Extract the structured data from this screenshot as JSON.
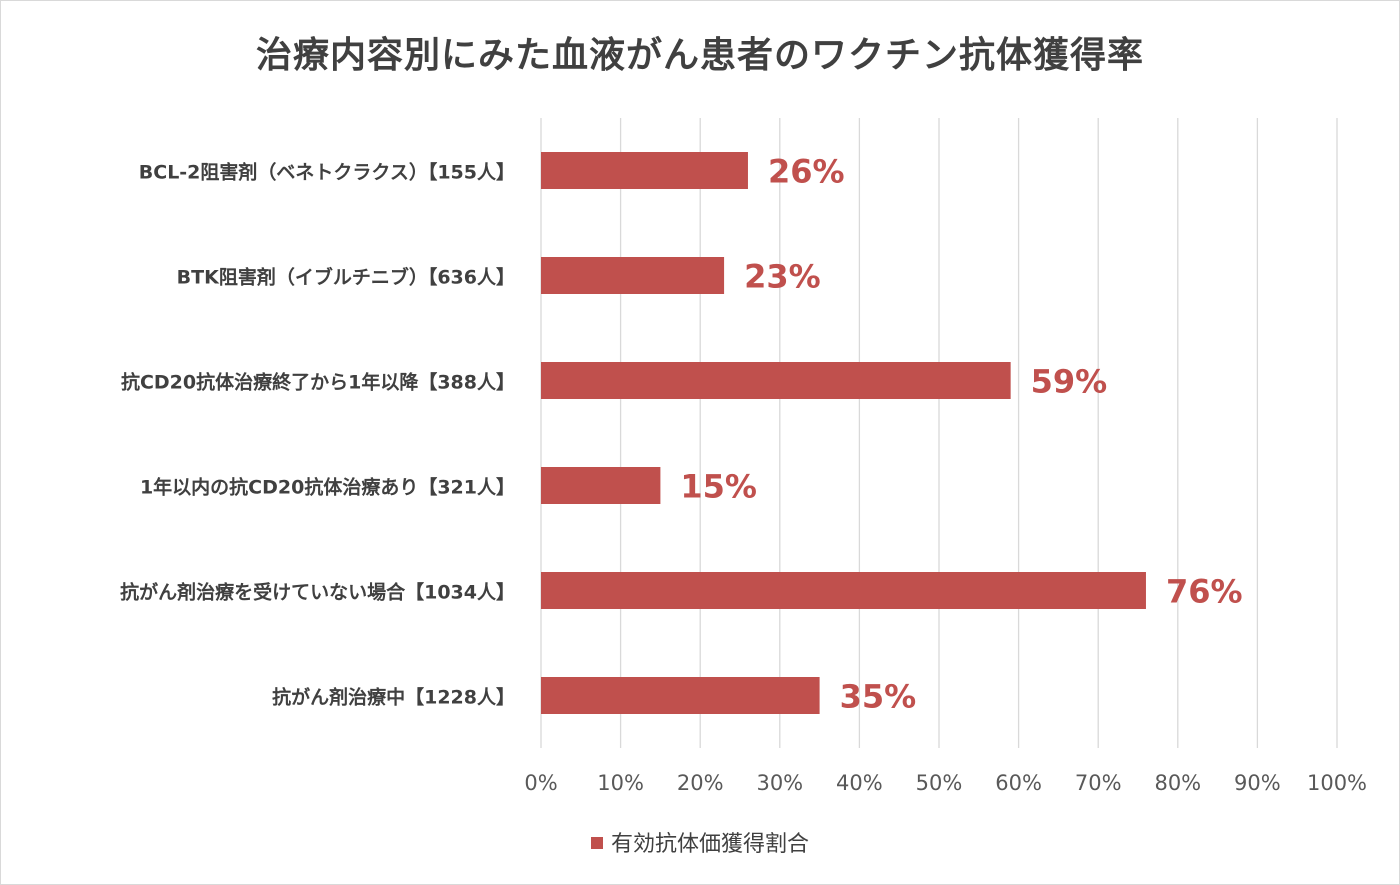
{
  "chart_data": {
    "type": "bar",
    "orientation": "horizontal",
    "title": "治療内容別にみた血液がん患者のワクチン抗体獲得率",
    "categories": [
      "BCL-2阻害剤（ベネトクラクス）【155人】",
      "BTK阻害剤（イブルチニブ）【636人】",
      "抗CD20抗体治療終了から1年以降【388人】",
      "1年以内の抗CD20抗体治療あり【321人】",
      "抗がん剤治療を受けていない場合【1034人】",
      "抗がん剤治療中【1228人】"
    ],
    "series": [
      {
        "name": "有効抗体価獲得割合",
        "values": [
          26,
          23,
          59,
          15,
          76,
          35
        ],
        "color": "#c0504d"
      }
    ],
    "data_labels": [
      "26%",
      "23%",
      "59%",
      "15%",
      "76%",
      "35%"
    ],
    "xlim": [
      0,
      100
    ],
    "xticks": [
      "0%",
      "10%",
      "20%",
      "30%",
      "40%",
      "50%",
      "60%",
      "70%",
      "80%",
      "90%",
      "100%"
    ],
    "grid": true,
    "legend_position": "bottom",
    "label_color": "#c0504d"
  }
}
